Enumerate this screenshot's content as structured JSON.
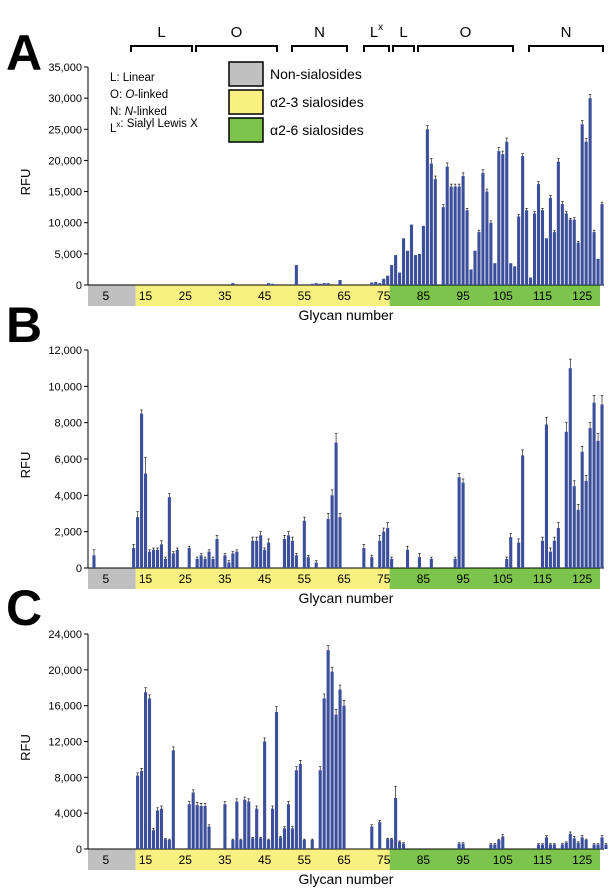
{
  "figure": {
    "group_brackets": [
      {
        "label": "L",
        "sup": ""
      },
      {
        "label": "O",
        "sup": ""
      },
      {
        "label": "N",
        "sup": ""
      },
      {
        "label": "L",
        "sup": "x"
      },
      {
        "label": "L",
        "sup": ""
      },
      {
        "label": "O",
        "sup": ""
      },
      {
        "label": "N",
        "sup": ""
      }
    ],
    "abbreviations": [
      {
        "text": "L: Linear",
        "parts": [
          {
            "t": "L: Linear",
            "i": false
          }
        ]
      },
      {
        "text": "O: O-linked",
        "parts": [
          {
            "t": "O: ",
            "i": false
          },
          {
            "t": "O",
            "i": true
          },
          {
            "t": "-linked",
            "i": false
          }
        ]
      },
      {
        "text": "N: N-linked",
        "parts": [
          {
            "t": "N: ",
            "i": false
          },
          {
            "t": "N",
            "i": true
          },
          {
            "t": "-linked",
            "i": false
          }
        ]
      },
      {
        "text": "Lx: Sialyl Lewis X",
        "parts": [
          {
            "t": "L",
            "i": false
          },
          {
            "t": "x",
            "i": false,
            "sup": true
          },
          {
            "t": ": Sialyl Lewis X",
            "i": false
          }
        ]
      }
    ],
    "legend": [
      {
        "label": "Non-sialosides",
        "color": "#c0c0c0"
      },
      {
        "label": "α2-3 sialosides",
        "color": "#f8f080"
      },
      {
        "label": "α2-6 sialosides",
        "color": "#7cc44c"
      }
    ],
    "category_bands": [
      {
        "from": 1,
        "to": 12,
        "color": "#c0c0c0"
      },
      {
        "from": 13,
        "to": 76,
        "color": "#f8f080"
      },
      {
        "from": 77,
        "to": 129,
        "color": "#7cc44c"
      }
    ],
    "bar_color": "#3b4f9a"
  },
  "chart_data": [
    {
      "type": "bar",
      "panel": "A",
      "xlabel": "Glycan number",
      "ylabel": "RFU",
      "ylim": [
        0,
        35000
      ],
      "yticks": [
        "0",
        "5,000",
        "10,000",
        "15,000",
        "20,000",
        "25,000",
        "30,000",
        "35,000"
      ],
      "ytick_values": [
        0,
        5000,
        10000,
        15000,
        20000,
        25000,
        30000,
        35000
      ],
      "xticks": [
        "5",
        "15",
        "25",
        "35",
        "45",
        "55",
        "65",
        "75",
        "85",
        "95",
        "105",
        "115",
        "125"
      ],
      "xtick_values": [
        5,
        15,
        25,
        35,
        45,
        55,
        65,
        75,
        85,
        95,
        105,
        115,
        125
      ],
      "x_start": 1,
      "values": [
        0,
        0,
        0,
        0,
        0,
        0,
        0,
        0,
        0,
        0,
        0,
        0,
        0,
        0,
        0,
        0,
        0,
        0,
        0,
        0,
        0,
        0,
        0,
        0,
        0,
        0,
        0,
        0,
        0,
        0,
        0,
        0,
        0,
        0,
        0,
        0,
        300,
        0,
        0,
        0,
        0,
        0,
        0,
        0,
        0,
        300,
        200,
        0,
        0,
        0,
        0,
        0,
        3200,
        0,
        0,
        0,
        200,
        300,
        200,
        300,
        300,
        0,
        0,
        800,
        0,
        0,
        0,
        0,
        0,
        0,
        0,
        400,
        500,
        300,
        1000,
        1500,
        3200,
        4800,
        2000,
        7500,
        5500,
        9700,
        4800,
        5000,
        9500,
        25000,
        19500,
        17000,
        0,
        12500,
        19000,
        15800,
        15800,
        15800,
        17500,
        12000,
        2500,
        5500,
        8500,
        18000,
        15000,
        10000,
        3500,
        21500,
        21000,
        23000,
        3500,
        3000,
        11000,
        20700,
        12000,
        1200,
        11500,
        16200,
        12000,
        7500,
        14000,
        8500,
        19800,
        13000,
        11500,
        10500,
        10500,
        6800,
        25800,
        23000,
        30000,
        8500,
        4200,
        13000
      ],
      "errors": [
        0,
        0,
        0,
        0,
        0,
        0,
        0,
        0,
        0,
        0,
        0,
        0,
        0,
        0,
        0,
        0,
        0,
        0,
        0,
        0,
        0,
        0,
        0,
        0,
        0,
        0,
        0,
        0,
        0,
        0,
        0,
        0,
        0,
        0,
        0,
        0,
        0,
        0,
        0,
        0,
        0,
        0,
        0,
        0,
        0,
        0,
        0,
        0,
        0,
        0,
        0,
        0,
        0,
        0,
        0,
        0,
        0,
        0,
        0,
        0,
        0,
        0,
        0,
        0,
        0,
        0,
        0,
        0,
        0,
        0,
        0,
        0,
        0,
        0,
        0,
        0,
        0,
        0,
        0,
        0,
        0,
        0,
        0,
        0,
        0,
        600,
        800,
        500,
        0,
        400,
        600,
        400,
        400,
        400,
        500,
        300,
        0,
        0,
        300,
        500,
        400,
        300,
        0,
        600,
        500,
        600,
        0,
        0,
        300,
        400,
        300,
        0,
        300,
        400,
        300,
        0,
        400,
        200,
        500,
        400,
        300,
        200,
        300,
        200,
        600,
        500,
        600,
        300,
        0,
        300
      ]
    },
    {
      "type": "bar",
      "panel": "B",
      "xlabel": "Glycan number",
      "ylabel": "RFU",
      "ylim": [
        0,
        12000
      ],
      "yticks": [
        "0",
        "2,000",
        "4,000",
        "6,000",
        "8,000",
        "10,000",
        "12,000"
      ],
      "ytick_values": [
        0,
        2000,
        4000,
        6000,
        8000,
        10000,
        12000
      ],
      "xticks": [
        "5",
        "15",
        "25",
        "35",
        "45",
        "55",
        "65",
        "75",
        "85",
        "95",
        "105",
        "115",
        "125"
      ],
      "xtick_values": [
        5,
        15,
        25,
        35,
        45,
        55,
        65,
        75,
        85,
        95,
        105,
        115,
        125
      ],
      "x_start": 1,
      "values": [
        0,
        700,
        0,
        0,
        0,
        0,
        0,
        0,
        0,
        0,
        0,
        1100,
        2800,
        8500,
        5200,
        900,
        1000,
        1000,
        1300,
        500,
        3900,
        800,
        1000,
        0,
        0,
        1100,
        0,
        500,
        700,
        500,
        900,
        500,
        1600,
        0,
        700,
        300,
        800,
        900,
        0,
        0,
        0,
        1500,
        1500,
        1800,
        1000,
        1400,
        0,
        0,
        0,
        1600,
        1800,
        1500,
        700,
        0,
        2600,
        600,
        0,
        300,
        0,
        0,
        2700,
        4000,
        6900,
        2800,
        0,
        0,
        0,
        0,
        0,
        1100,
        0,
        600,
        0,
        1500,
        2000,
        2200,
        500,
        0,
        0,
        0,
        1000,
        0,
        0,
        600,
        0,
        0,
        500,
        0,
        0,
        0,
        0,
        0,
        500,
        5000,
        4700,
        0,
        0,
        0,
        0,
        0,
        0,
        0,
        0,
        0,
        0,
        500,
        1700,
        0,
        1400,
        6200,
        0,
        0,
        0,
        0,
        1500,
        7900,
        900,
        1500,
        2200,
        0,
        7500,
        11000,
        4500,
        3200,
        6400,
        4800,
        7700,
        9100,
        7000,
        9000,
        0
      ],
      "errors": [
        0,
        300,
        0,
        0,
        0,
        0,
        0,
        0,
        0,
        0,
        0,
        200,
        300,
        200,
        900,
        100,
        100,
        100,
        200,
        100,
        200,
        100,
        100,
        0,
        0,
        100,
        0,
        100,
        100,
        100,
        100,
        100,
        200,
        0,
        100,
        100,
        100,
        100,
        0,
        0,
        0,
        200,
        200,
        200,
        100,
        200,
        0,
        0,
        0,
        200,
        200,
        200,
        100,
        0,
        200,
        100,
        0,
        100,
        0,
        0,
        300,
        300,
        500,
        200,
        0,
        0,
        0,
        0,
        0,
        200,
        0,
        100,
        0,
        300,
        200,
        300,
        100,
        0,
        0,
        0,
        200,
        0,
        0,
        200,
        0,
        0,
        100,
        0,
        0,
        0,
        0,
        0,
        100,
        200,
        200,
        0,
        0,
        0,
        0,
        0,
        0,
        0,
        0,
        0,
        0,
        100,
        200,
        0,
        200,
        300,
        0,
        0,
        0,
        0,
        200,
        400,
        200,
        200,
        300,
        0,
        500,
        500,
        300,
        300,
        300,
        300,
        300,
        400,
        400,
        500,
        0
      ]
    },
    {
      "type": "bar",
      "panel": "C",
      "xlabel": "Glycan number",
      "ylabel": "RFU",
      "ylim": [
        0,
        24000
      ],
      "yticks": [
        "0",
        "4,000",
        "8,000",
        "12,000",
        "16,000",
        "20,000",
        "24,000"
      ],
      "ytick_values": [
        0,
        4000,
        8000,
        12000,
        16000,
        20000,
        24000
      ],
      "xticks": [
        "5",
        "15",
        "25",
        "35",
        "45",
        "55",
        "65",
        "75",
        "85",
        "95",
        "105",
        "115",
        "125"
      ],
      "xtick_values": [
        5,
        15,
        25,
        35,
        45,
        55,
        65,
        75,
        85,
        95,
        105,
        115,
        125
      ],
      "x_start": 1,
      "values": [
        0,
        0,
        0,
        0,
        0,
        0,
        0,
        0,
        0,
        0,
        0,
        0,
        8200,
        8700,
        17500,
        16800,
        2100,
        4300,
        4500,
        1100,
        1000,
        11000,
        0,
        0,
        0,
        5000,
        6300,
        4900,
        4800,
        4800,
        2500,
        0,
        0,
        0,
        5000,
        0,
        1000,
        5300,
        1000,
        5500,
        5300,
        1200,
        4500,
        1200,
        12000,
        1000,
        4500,
        15300,
        1300,
        2300,
        5000,
        2300,
        8800,
        9500,
        1000,
        0,
        1000,
        0,
        8800,
        16800,
        22200,
        19800,
        15000,
        17800,
        16000,
        0,
        0,
        0,
        0,
        0,
        0,
        2500,
        0,
        3000,
        0,
        1100,
        1100,
        5700,
        800,
        600,
        0,
        0,
        0,
        0,
        0,
        0,
        0,
        0,
        0,
        0,
        0,
        0,
        0,
        600,
        600,
        0,
        0,
        0,
        0,
        0,
        0,
        500,
        500,
        1000,
        1400,
        0,
        0,
        0,
        0,
        0,
        0,
        0,
        0,
        500,
        500,
        1300,
        500,
        500,
        0,
        500,
        700,
        1700,
        1200,
        700,
        1300,
        1000,
        0,
        500,
        500,
        1300,
        500
      ],
      "errors": [
        0,
        0,
        0,
        0,
        0,
        0,
        0,
        0,
        0,
        0,
        0,
        0,
        300,
        300,
        500,
        400,
        200,
        300,
        300,
        100,
        100,
        400,
        0,
        0,
        0,
        300,
        300,
        300,
        300,
        300,
        200,
        0,
        0,
        0,
        300,
        0,
        100,
        300,
        100,
        300,
        300,
        100,
        300,
        100,
        400,
        100,
        300,
        600,
        100,
        200,
        300,
        200,
        400,
        400,
        100,
        0,
        100,
        0,
        400,
        500,
        500,
        500,
        600,
        500,
        600,
        0,
        0,
        0,
        0,
        0,
        0,
        200,
        0,
        200,
        0,
        100,
        100,
        1300,
        100,
        100,
        0,
        0,
        0,
        0,
        0,
        0,
        0,
        0,
        0,
        0,
        0,
        0,
        0,
        100,
        100,
        0,
        0,
        0,
        0,
        0,
        0,
        100,
        100,
        100,
        200,
        0,
        0,
        0,
        0,
        0,
        0,
        0,
        0,
        100,
        100,
        200,
        100,
        100,
        0,
        100,
        100,
        200,
        200,
        100,
        200,
        100,
        0,
        100,
        100,
        200,
        100
      ]
    }
  ]
}
